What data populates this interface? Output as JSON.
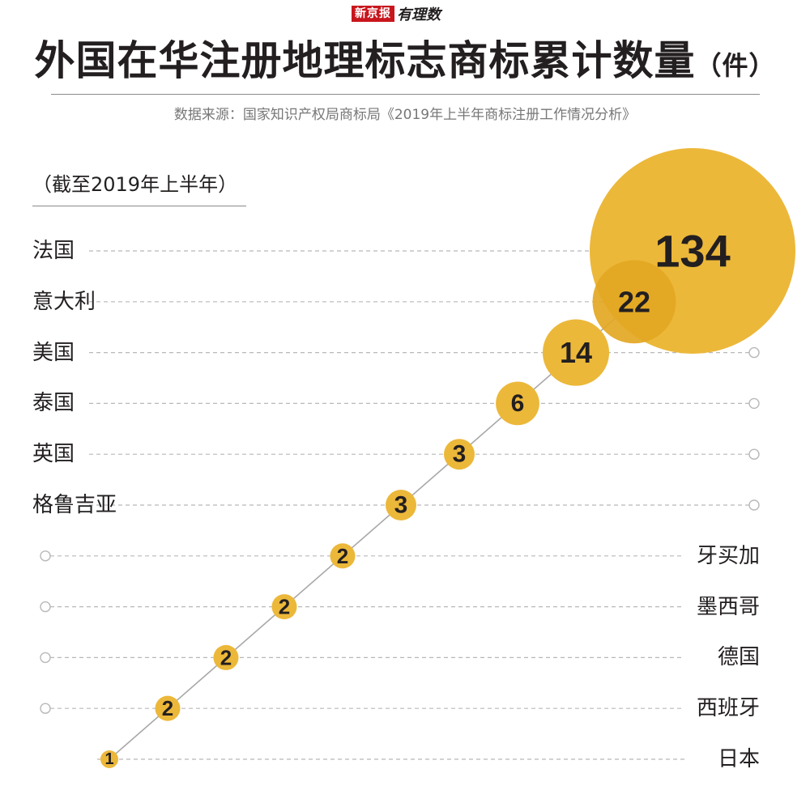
{
  "logo": {
    "brand": "新京报",
    "column": "有理数"
  },
  "title": {
    "main": "外国在华注册地理标志商标累计数量",
    "unit": "（件）"
  },
  "source": "数据来源：国家知识产权局商标局《2019年上半年商标注册工作情况分析》",
  "note": "（截至2019年上半年）",
  "colors": {
    "bubble": "#ecb83a",
    "bubble_overlap": "#e3a723",
    "text": "#231f20",
    "dash": "#b8b8b8"
  },
  "chart_data": {
    "type": "bubble",
    "title": "外国在华注册地理标志商标累计数量",
    "unit": "件",
    "categories": [
      "法国",
      "意大利",
      "美国",
      "泰国",
      "英国",
      "格鲁吉亚",
      "牙买加",
      "墨西哥",
      "德国",
      "西班牙",
      "日本"
    ],
    "values": [
      134,
      22,
      14,
      6,
      3,
      3,
      2,
      2,
      2,
      2,
      1
    ]
  }
}
